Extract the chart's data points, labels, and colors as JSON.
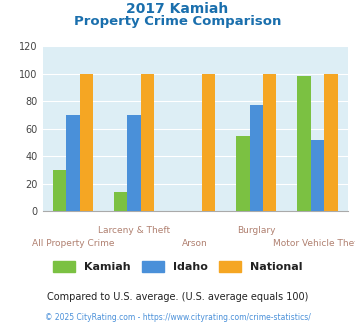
{
  "title_line1": "2017 Kamiah",
  "title_line2": "Property Crime Comparison",
  "categories": [
    "All Property Crime",
    "Larceny & Theft",
    "Arson",
    "Burglary",
    "Motor Vehicle Theft"
  ],
  "kamiah": [
    30,
    14,
    0,
    55,
    98
  ],
  "idaho": [
    70,
    70,
    0,
    77,
    52
  ],
  "national": [
    100,
    100,
    100,
    100,
    100
  ],
  "color_kamiah": "#7bc142",
  "color_idaho": "#4a90d9",
  "color_national": "#f5a623",
  "ylim": [
    0,
    120
  ],
  "yticks": [
    0,
    20,
    40,
    60,
    80,
    100,
    120
  ],
  "bg_color": "#ddeef5",
  "legend_labels": [
    "Kamiah",
    "Idaho",
    "National"
  ],
  "footnote1": "Compared to U.S. average. (U.S. average equals 100)",
  "footnote2": "© 2025 CityRating.com - https://www.cityrating.com/crime-statistics/",
  "title_color": "#1a6fad",
  "xtick_top": [
    "",
    "Larceny & Theft",
    "",
    "Burglary",
    ""
  ],
  "xtick_bot": [
    "All Property Crime",
    "",
    "Arson",
    "",
    "Motor Vehicle Theft"
  ],
  "xtick_color": "#b08070",
  "footnote1_color": "#222222",
  "footnote2_color": "#4a90d9"
}
